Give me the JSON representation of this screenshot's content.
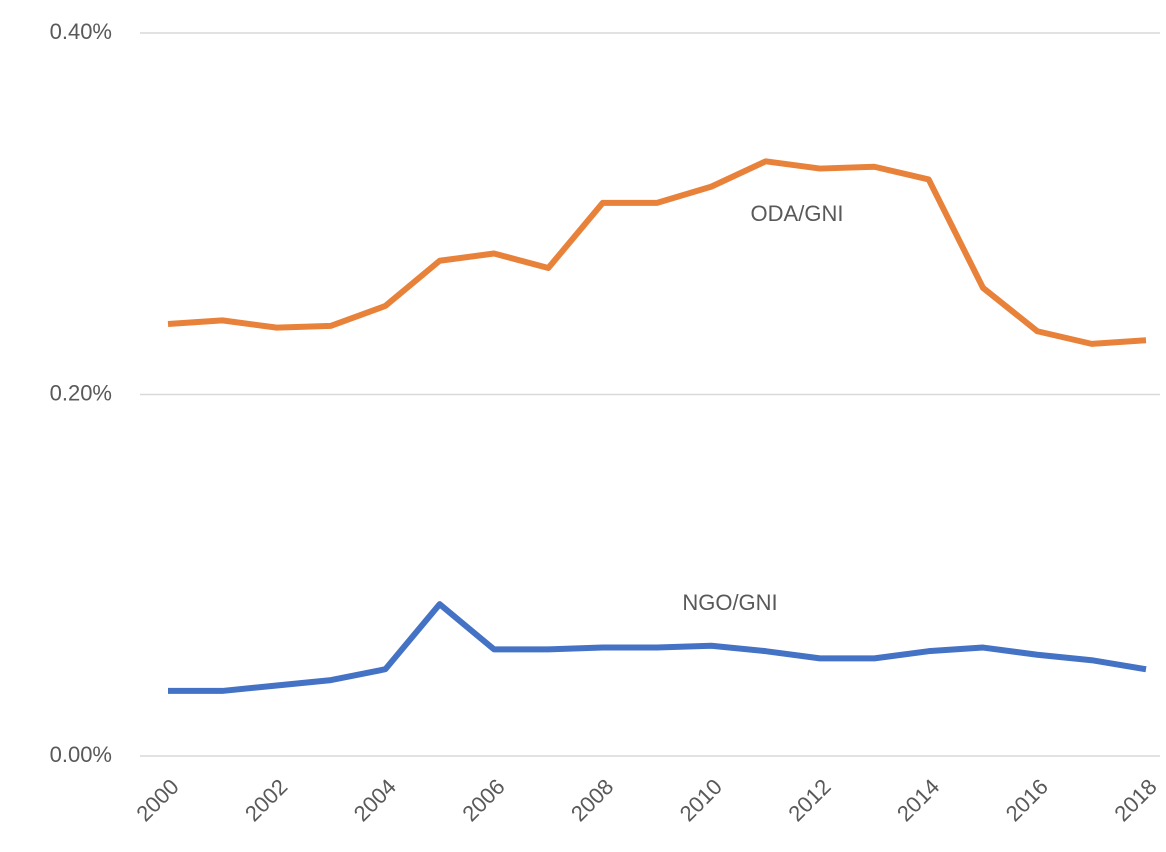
{
  "chart_data": {
    "type": "line",
    "x": [
      2000,
      2001,
      2002,
      2003,
      2004,
      2005,
      2006,
      2007,
      2008,
      2009,
      2010,
      2011,
      2012,
      2013,
      2014,
      2015,
      2016,
      2017,
      2018
    ],
    "series": [
      {
        "name": "ODA/GNI",
        "color": "#e8823a",
        "values": [
          0.239,
          0.241,
          0.237,
          0.238,
          0.249,
          0.274,
          0.278,
          0.27,
          0.306,
          0.306,
          0.315,
          0.329,
          0.325,
          0.326,
          0.319,
          0.259,
          0.235,
          0.228,
          0.23
        ]
      },
      {
        "name": "NGO/GNI",
        "color": "#4472c4",
        "values": [
          0.036,
          0.036,
          0.039,
          0.042,
          0.048,
          0.084,
          0.059,
          0.059,
          0.06,
          0.06,
          0.061,
          0.058,
          0.054,
          0.054,
          0.058,
          0.06,
          0.056,
          0.053,
          0.048
        ]
      }
    ],
    "xlim": [
      2000,
      2018
    ],
    "xticks": [
      2000,
      2002,
      2004,
      2006,
      2008,
      2010,
      2012,
      2014,
      2016,
      2018
    ],
    "ylim": [
      0,
      0.4
    ],
    "yticks": [
      {
        "value": 0,
        "label": "0.00%"
      },
      {
        "value": 0.2,
        "label": "0.20%"
      },
      {
        "value": 0.4,
        "label": "0.40%"
      }
    ],
    "grid": true
  }
}
